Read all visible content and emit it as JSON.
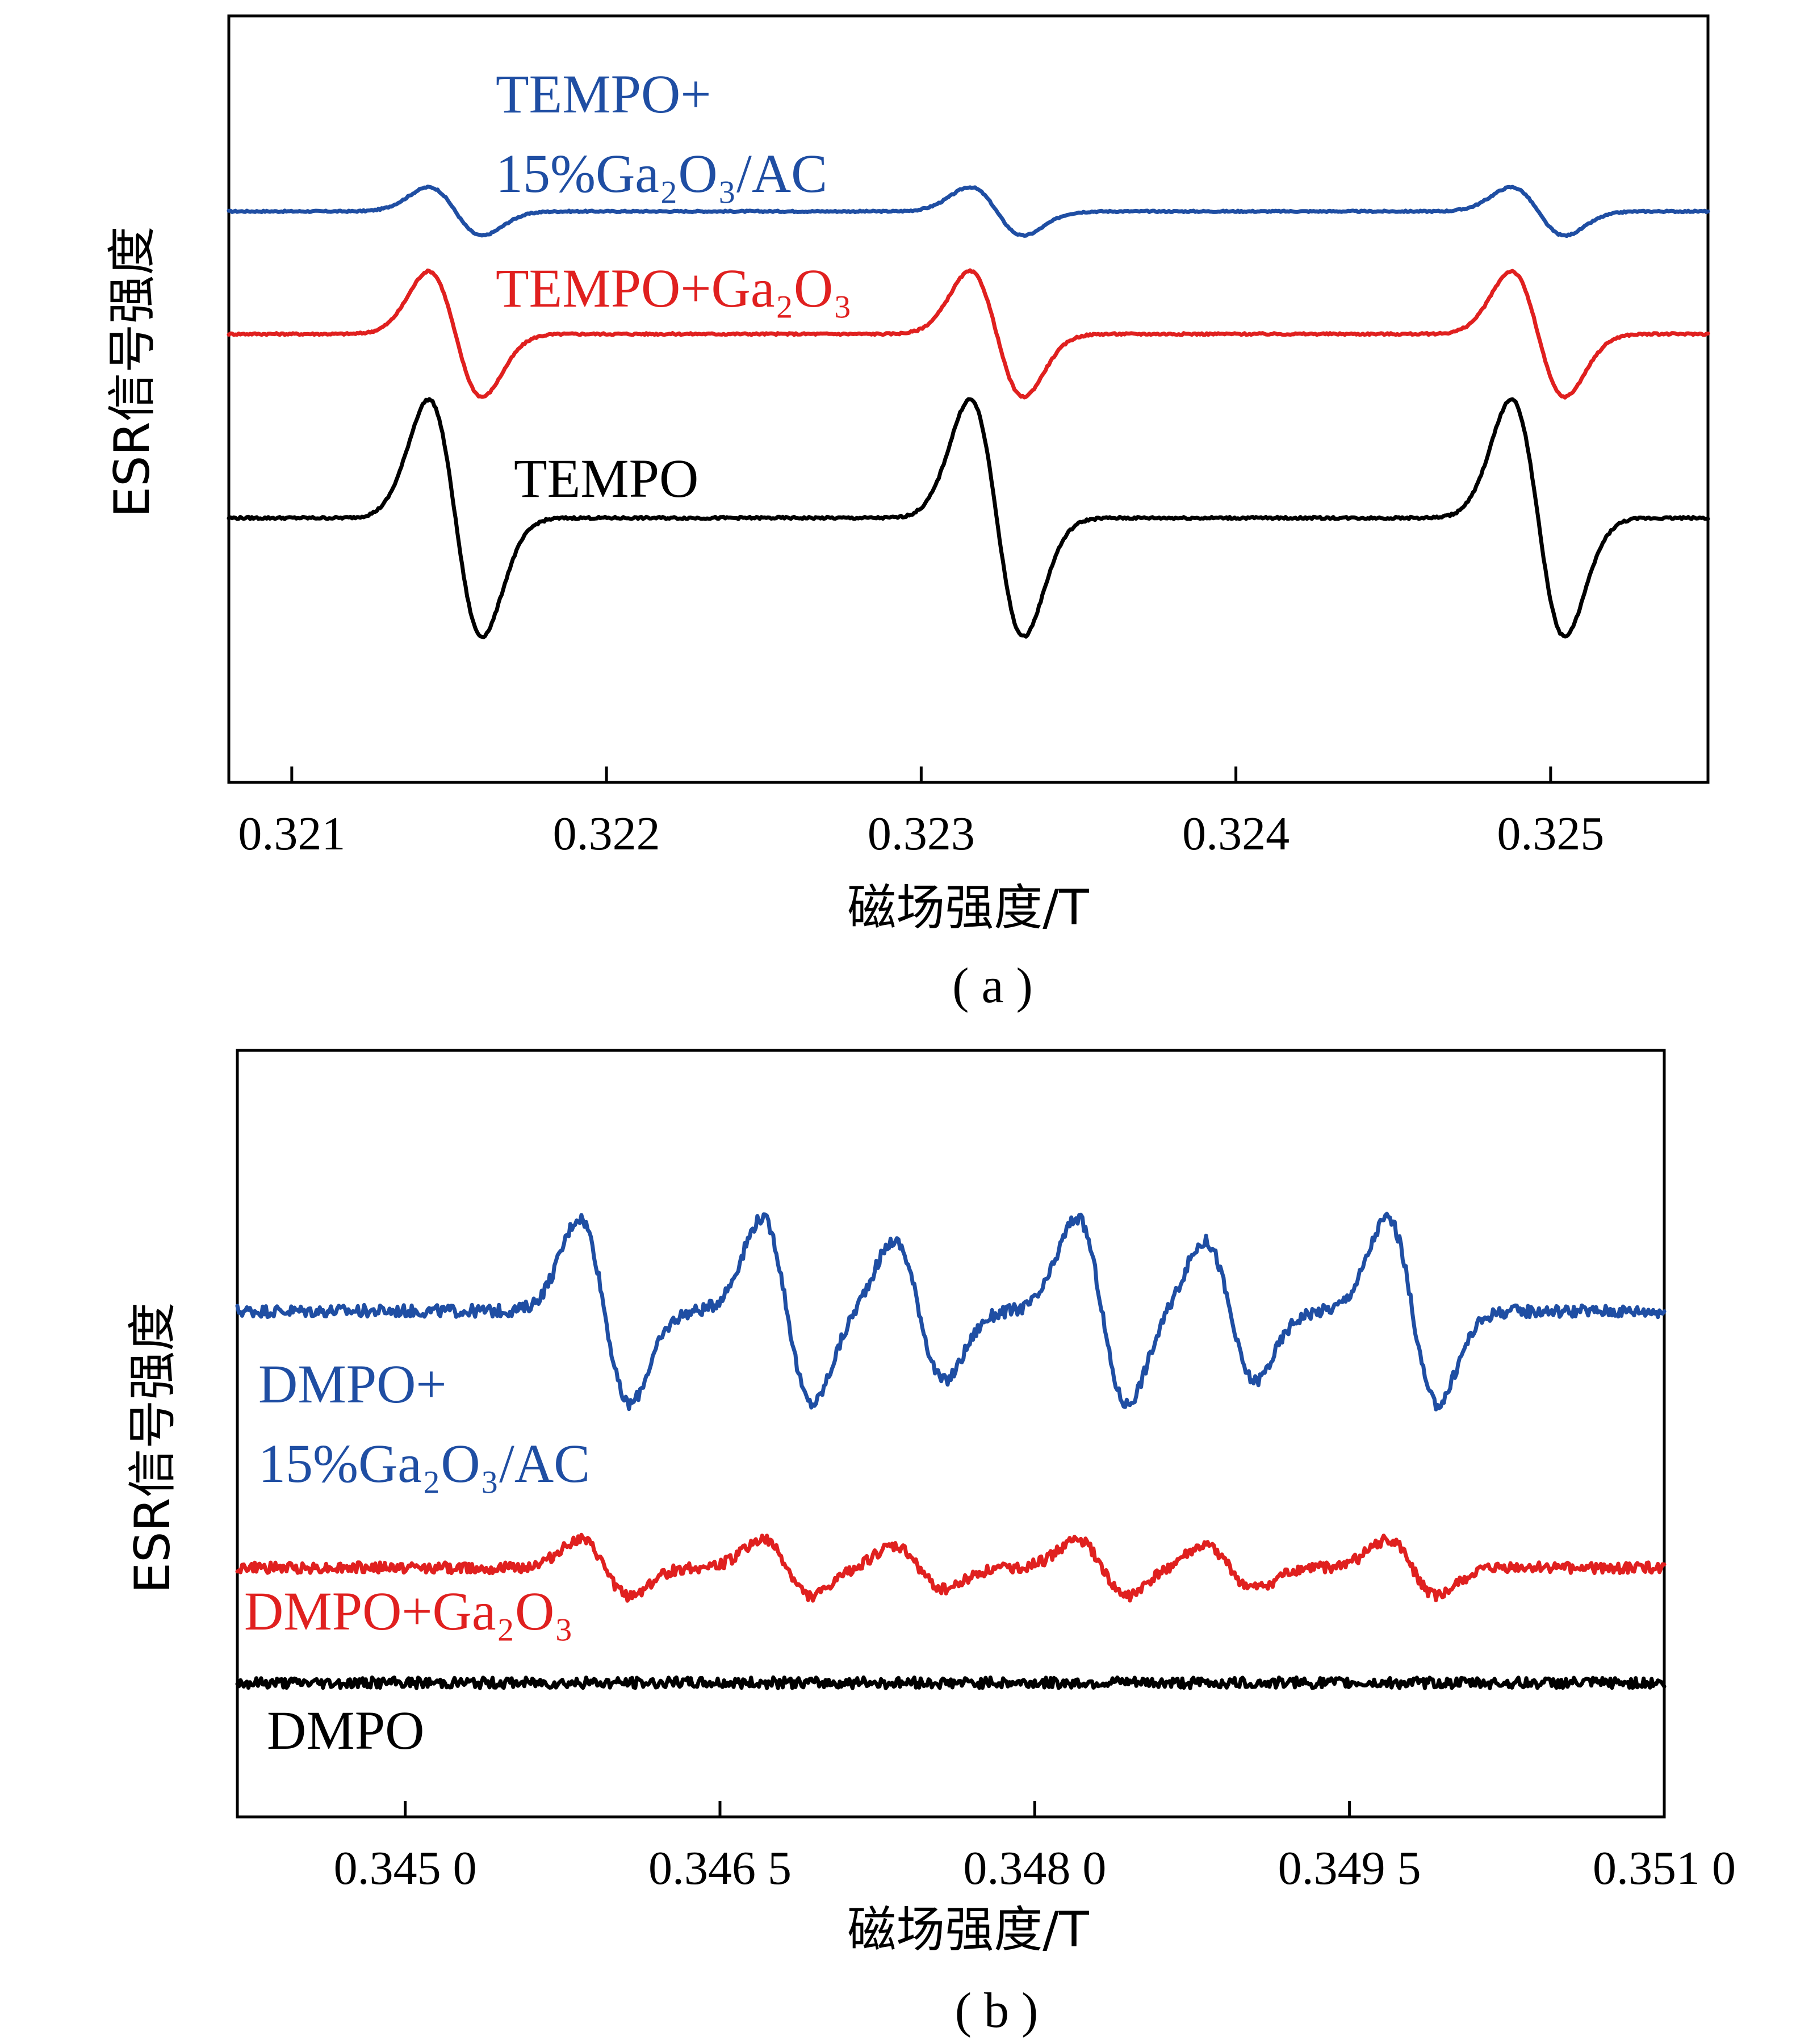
{
  "chart_data": [
    {
      "type": "line",
      "panel_label": "( a )",
      "xlabel": "磁场强度/T",
      "ylabel": "ESR信号强度",
      "xlim": [
        0.3208,
        0.3255
      ],
      "xticks": [
        0.321,
        0.322,
        0.323,
        0.324,
        0.325
      ],
      "xtick_labels": [
        "0.321",
        "0.322",
        "0.323",
        "0.324",
        "0.325"
      ],
      "ylim": [
        0,
        1
      ],
      "grid": false,
      "line_centers": [
        0.32152,
        0.32324,
        0.32496
      ],
      "series": [
        {
          "name": "TEMPO+15%Ga2O3/AC",
          "label_line1": "TEMPO+",
          "label_line2": "15%Ga₂O₃/AC",
          "color": "#1f4ea3",
          "baseline": 0.745,
          "amplitude": 0.052,
          "width": 8.5e-05,
          "noise": 0.001
        },
        {
          "name": "TEMPO+Ga2O3",
          "label_line1": "TEMPO+Ga₂O₃",
          "color": "#e0201f",
          "baseline": 0.585,
          "amplitude": 0.135,
          "width": 8.5e-05,
          "noise": 0.0012
        },
        {
          "name": "TEMPO",
          "label_line1": "TEMPO",
          "color": "#000000",
          "baseline": 0.345,
          "amplitude": 0.255,
          "width": 8.5e-05,
          "noise": 0.0015
        }
      ]
    },
    {
      "type": "line",
      "panel_label": "( b )",
      "xlabel": "磁场强度/T",
      "ylabel": "ESR信号强度",
      "xlim": [
        0.3442,
        0.351
      ],
      "xticks": [
        0.345,
        0.3465,
        0.348,
        0.3495,
        0.351
      ],
      "xtick_labels": [
        "0.345 0",
        "0.346 5",
        "0.348 0",
        "0.349 5",
        "0.351 0"
      ],
      "ylim": [
        0,
        1
      ],
      "grid": false,
      "line_centers": [
        0.34595,
        0.34682,
        0.34745,
        0.34832,
        0.34893,
        0.3498
      ],
      "line_weights": [
        1.0,
        1.0,
        0.75,
        1.0,
        0.75,
        1.0
      ],
      "series": [
        {
          "name": "DMPO+15%Ga2O3/AC",
          "label_line1": "DMPO+",
          "label_line2": "15%Ga₂O₃/AC",
          "color": "#1f4ea3",
          "baseline": 0.66,
          "amplitude": 0.2,
          "width": 0.00012,
          "noise": 0.008
        },
        {
          "name": "DMPO+Ga2O3",
          "label_line1": "DMPO+Ga₂O₃",
          "color": "#e0201f",
          "baseline": 0.325,
          "amplitude": 0.06,
          "width": 0.00012,
          "noise": 0.007
        },
        {
          "name": "DMPO",
          "label_line1": "DMPO",
          "color": "#000000",
          "baseline": 0.175,
          "amplitude": 0.0,
          "width": 0.00012,
          "noise": 0.007
        }
      ]
    }
  ]
}
